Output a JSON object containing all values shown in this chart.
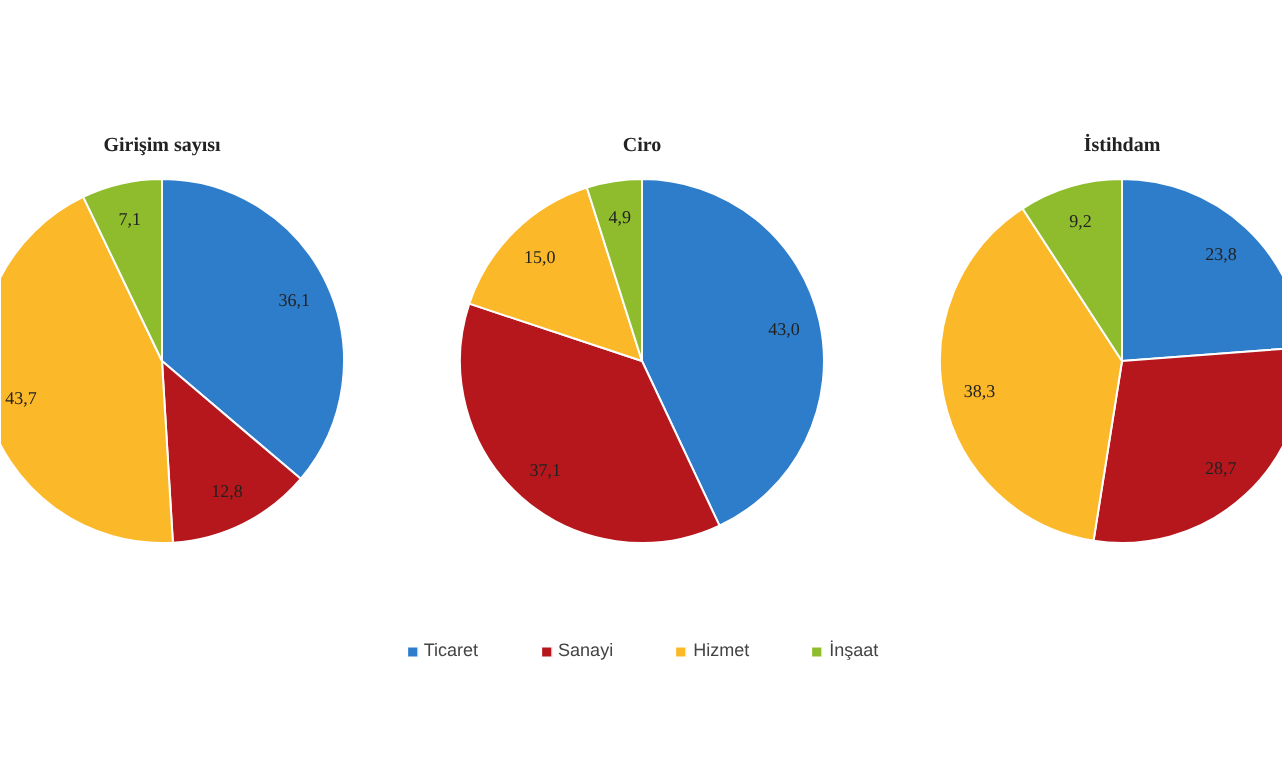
{
  "chart_data": [
    {
      "type": "pie",
      "title": "Girişim sayısı",
      "categories": [
        "Ticaret",
        "Sanayi",
        "Hizmet",
        "İnşaat"
      ],
      "values": [
        36.1,
        12.8,
        43.7,
        7.1
      ],
      "colors": [
        "#2e7dcb",
        "#b5171c",
        "#fbb829",
        "#8fbc2c"
      ],
      "value_labels": [
        "36,1",
        "12,8",
        "43,7",
        "7,1"
      ],
      "legend": "bottom"
    },
    {
      "type": "pie",
      "title": "Ciro",
      "categories": [
        null,
        null,
        null,
        null
      ],
      "values": [
        43.0,
        37.1,
        15.0,
        4.9
      ],
      "colors": [
        "#2e7dcb",
        "#b5171c",
        "#fbb829",
        "#8fbc2c"
      ],
      "value_labels": [
        "43,0",
        "37,1",
        "15,0",
        "4,9"
      ]
    },
    {
      "type": "pie",
      "title": "İstihdam",
      "categories": [
        null,
        null,
        null,
        null
      ],
      "values": [
        23.8,
        28.7,
        38.3,
        9.2
      ],
      "colors": [
        "#2e7dcb",
        "#b5171c",
        "#fbb829",
        "#8fbc2c"
      ],
      "value_labels": [
        "23,8",
        "28,7",
        "38,3",
        "9,2"
      ]
    }
  ]
}
